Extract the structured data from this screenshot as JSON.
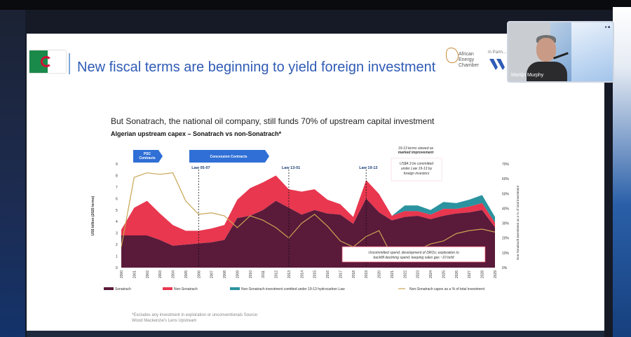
{
  "slide": {
    "title": "New fiscal terms are beginning to yield foreign investment",
    "logo_text": [
      "African",
      "Energy",
      "Chamber"
    ],
    "partner_text": "In Partn...",
    "subtitle": "But Sonatrach, the national oil company, still funds 70% of upstream capital investment",
    "chart_title": "Algerian upstream capex – Sonatrach vs non-Sonatrach*",
    "footnote": [
      "*Excludes any investment in exploration or unconventionals Source:",
      "Wood Mackenzie's Lens Upstream"
    ]
  },
  "video": {
    "participant_name": "Martijn Murphy"
  },
  "chart_data": {
    "type": "area",
    "x": [
      2000,
      2001,
      2002,
      2003,
      2004,
      2005,
      2006,
      2007,
      2008,
      2009,
      2010,
      2011,
      2012,
      2013,
      2014,
      2015,
      2016,
      2017,
      2018,
      2019,
      2020,
      2021,
      2022,
      2023,
      2024,
      2025,
      2026,
      2027,
      2028,
      2029
    ],
    "ylabel": "US$ billion (2025 terms)",
    "y2label": "Non-Sonatrach investment as a % of total investment",
    "ylim": [
      0,
      9
    ],
    "y_ticks": [
      "0",
      "1",
      "2",
      "3",
      "4",
      "5",
      "6",
      "7",
      "8",
      "9"
    ],
    "y2_ticks": [
      "0%",
      "10%",
      "20%",
      "30%",
      "40%",
      "50%",
      "60%",
      "70%"
    ],
    "series": [
      {
        "name": "Sonatrach",
        "color": "#5a1a3a",
        "axis": "left",
        "values": [
          2.8,
          2.8,
          2.8,
          2.4,
          1.9,
          2.0,
          2.1,
          2.2,
          2.4,
          4.3,
          4.5,
          5.0,
          5.8,
          5.2,
          4.6,
          5.0,
          4.7,
          4.6,
          3.8,
          6.0,
          4.8,
          4.1,
          4.4,
          4.5,
          4.2,
          4.5,
          4.7,
          4.8,
          5.0,
          3.5
        ]
      },
      {
        "name": "Non-Sonatrach",
        "color": "#e8374f",
        "axis": "left",
        "values": [
          0.5,
          2.4,
          3.0,
          2.3,
          1.8,
          1.2,
          1.1,
          1.2,
          1.3,
          1.6,
          2.4,
          2.4,
          2.2,
          1.6,
          2.0,
          1.8,
          1.2,
          0.9,
          0.6,
          1.6,
          1.6,
          0.4,
          0.5,
          0.4,
          0.4,
          0.6,
          0.4,
          0.5,
          0.6,
          0.4
        ]
      },
      {
        "name": "Non-Sonatrach investment comitted under 19-13 hydrocarbon Law",
        "color": "#2b93a0",
        "axis": "left",
        "values": [
          0,
          0,
          0,
          0,
          0,
          0,
          0,
          0,
          0,
          0,
          0,
          0,
          0,
          0,
          0,
          0,
          0,
          0,
          0,
          0,
          0,
          0,
          0.5,
          0.5,
          0.4,
          0.6,
          0.5,
          0.6,
          0.7,
          0.5
        ]
      },
      {
        "name": "Non-Sonatrach capex as a % of total investment",
        "color": "#c9a552",
        "axis": "right",
        "type": "line",
        "values": [
          14,
          61,
          64,
          63,
          64,
          45,
          36,
          37,
          35,
          27,
          35,
          32,
          27,
          20,
          30,
          36,
          28,
          18,
          14,
          21,
          25,
          8,
          11,
          12,
          16,
          18,
          23,
          25,
          26,
          24
        ]
      }
    ],
    "annotations": {
      "phase_1": "PSC Contracts",
      "phase_2": "Concession Contracts",
      "laws": [
        "Law 05-07",
        "Law 13-01",
        "Law 19-13"
      ],
      "note_1": "19-13 terms viewed as marked improvement",
      "note_2": "US$4.3 bn committed under Law 19-13 by foreign investors",
      "note_3": "Uncommitted spend; development of DROs; exploration to backfill declining spend, keeping sales gas ~10 bcfd"
    },
    "grid": false,
    "legend_position": "bottom"
  }
}
